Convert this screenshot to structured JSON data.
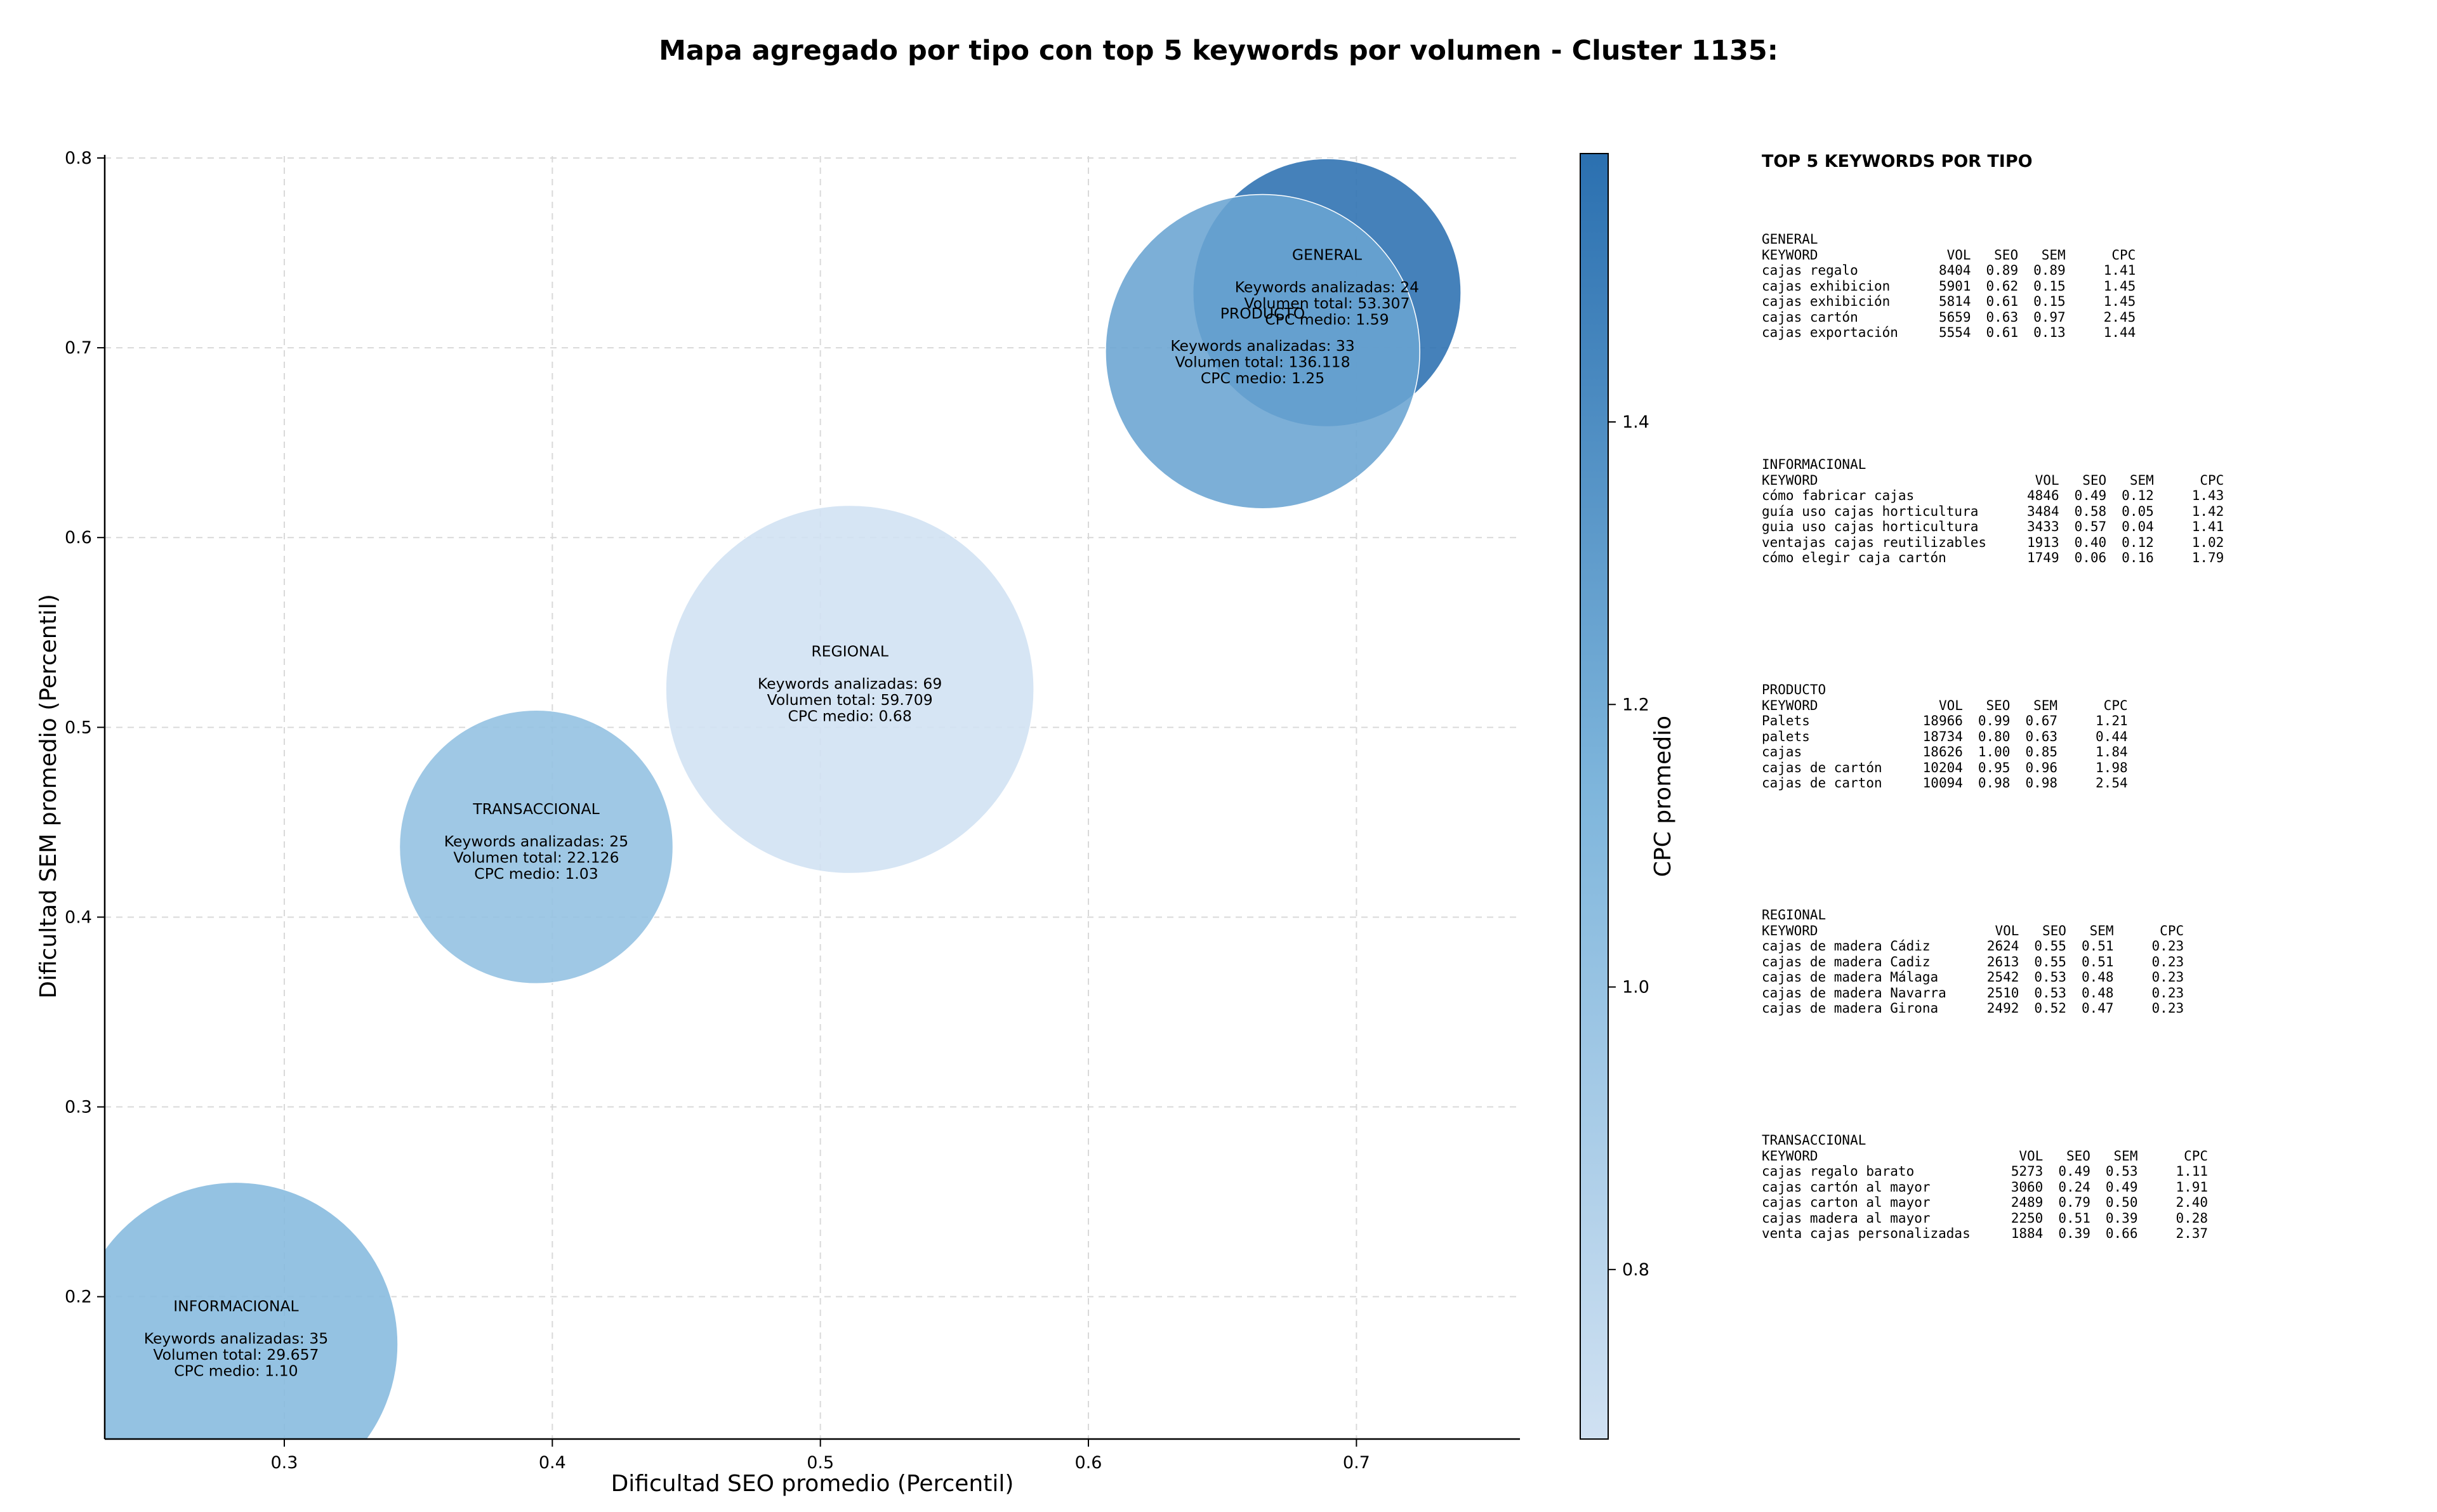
{
  "title": "Mapa agregado por tipo con top 5 keywords por volumen - Cluster 1135:",
  "chart_data": {
    "type": "bubble",
    "xlabel": "Dificultad SEO promedio (Percentil)",
    "ylabel": "Dificultad SEM promedio (Percentil)",
    "xlim": [
      0.233,
      0.761
    ],
    "ylim": [
      0.125,
      0.801
    ],
    "xticks": [
      "0.3",
      "0.4",
      "0.5",
      "0.6",
      "0.7"
    ],
    "yticks": [
      "0.2",
      "0.3",
      "0.4",
      "0.5",
      "0.6",
      "0.7",
      "0.8"
    ],
    "grid": true,
    "colorbar": {
      "label": "CPC promedio",
      "range": [
        0.68,
        1.59
      ],
      "ticks": [
        "0.8",
        "1.0",
        "1.2",
        "1.4"
      ]
    },
    "bubbles": [
      {
        "type": "GENERAL",
        "x": 0.689,
        "y": 0.729,
        "size": 24,
        "keywords": "Keywords analizadas: 24",
        "volume": "Volumen total: 53.307",
        "cpc_label": "CPC medio: 1.59",
        "cpc": 1.59
      },
      {
        "type": "PRODUCTO",
        "x": 0.665,
        "y": 0.698,
        "size": 33,
        "keywords": "Keywords analizadas: 33",
        "volume": "Volumen total: 136.118",
        "cpc_label": "CPC medio: 1.25",
        "cpc": 1.25
      },
      {
        "type": "REGIONAL",
        "x": 0.511,
        "y": 0.52,
        "size": 69,
        "keywords": "Keywords analizadas: 69",
        "volume": "Volumen total: 59.709",
        "cpc_label": "CPC medio: 0.68",
        "cpc": 0.68
      },
      {
        "type": "TRANSACCIONAL",
        "x": 0.394,
        "y": 0.437,
        "size": 25,
        "keywords": "Keywords analizadas: 25",
        "volume": "Volumen total: 22.126",
        "cpc_label": "CPC medio: 1.03",
        "cpc": 1.03
      },
      {
        "type": "INFORMACIONAL",
        "x": 0.282,
        "y": 0.175,
        "size": 35,
        "keywords": "Keywords analizadas: 35",
        "volume": "Volumen total: 29.657",
        "cpc_label": "CPC medio: 1.10",
        "cpc": 1.1
      }
    ]
  },
  "side_panel": {
    "title": "TOP 5 KEYWORDS POR TIPO",
    "headers": [
      "KEYWORD",
      "VOL",
      "SEO",
      "SEM",
      "CPC"
    ],
    "groups": [
      {
        "name": "GENERAL",
        "rows": [
          [
            "cajas regalo",
            "8404",
            "0.89",
            "0.89",
            "1.41"
          ],
          [
            "cajas exhibicion",
            "5901",
            "0.62",
            "0.15",
            "1.45"
          ],
          [
            "cajas exhibición",
            "5814",
            "0.61",
            "0.15",
            "1.45"
          ],
          [
            "cajas cartón",
            "5659",
            "0.63",
            "0.97",
            "2.45"
          ],
          [
            "cajas exportación",
            "5554",
            "0.61",
            "0.13",
            "1.44"
          ]
        ]
      },
      {
        "name": "INFORMACIONAL",
        "rows": [
          [
            "cómo fabricar cajas",
            "4846",
            "0.49",
            "0.12",
            "1.43"
          ],
          [
            "guía uso cajas horticultura",
            "3484",
            "0.58",
            "0.05",
            "1.42"
          ],
          [
            "guia uso cajas horticultura",
            "3433",
            "0.57",
            "0.04",
            "1.41"
          ],
          [
            "ventajas cajas reutilizables",
            "1913",
            "0.40",
            "0.12",
            "1.02"
          ],
          [
            "cómo elegir caja cartón",
            "1749",
            "0.06",
            "0.16",
            "1.79"
          ]
        ]
      },
      {
        "name": "PRODUCTO",
        "rows": [
          [
            "Palets",
            "18966",
            "0.99",
            "0.67",
            "1.21"
          ],
          [
            "palets",
            "18734",
            "0.80",
            "0.63",
            "0.44"
          ],
          [
            "cajas",
            "18626",
            "1.00",
            "0.85",
            "1.84"
          ],
          [
            "cajas de cartón",
            "10204",
            "0.95",
            "0.96",
            "1.98"
          ],
          [
            "cajas de carton",
            "10094",
            "0.98",
            "0.98",
            "2.54"
          ]
        ]
      },
      {
        "name": "REGIONAL",
        "rows": [
          [
            "cajas de madera Cádiz",
            "2624",
            "0.55",
            "0.51",
            "0.23"
          ],
          [
            "cajas de madera Cadiz",
            "2613",
            "0.55",
            "0.51",
            "0.23"
          ],
          [
            "cajas de madera Málaga",
            "2542",
            "0.53",
            "0.48",
            "0.23"
          ],
          [
            "cajas de madera Navarra",
            "2510",
            "0.53",
            "0.48",
            "0.23"
          ],
          [
            "cajas de madera Girona",
            "2492",
            "0.52",
            "0.47",
            "0.23"
          ]
        ]
      },
      {
        "name": "TRANSACCIONAL",
        "rows": [
          [
            "cajas regalo barato",
            "5273",
            "0.49",
            "0.53",
            "1.11"
          ],
          [
            "cajas cartón al mayor",
            "3060",
            "0.24",
            "0.49",
            "1.91"
          ],
          [
            "cajas carton al mayor",
            "2489",
            "0.79",
            "0.50",
            "2.40"
          ],
          [
            "cajas madera al mayor",
            "2250",
            "0.51",
            "0.39",
            "0.28"
          ],
          [
            "venta cajas personalizadas",
            "1884",
            "0.39",
            "0.66",
            "2.37"
          ]
        ]
      }
    ]
  }
}
